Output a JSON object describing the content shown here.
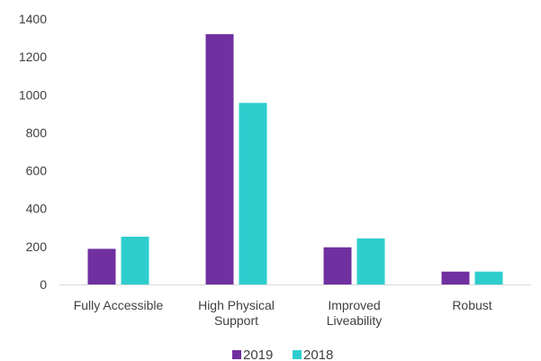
{
  "chart_data": {
    "type": "bar",
    "categories": [
      [
        "Fully Accessible"
      ],
      [
        "High Physical",
        "Support"
      ],
      [
        "Improved",
        "Liveability"
      ],
      [
        "Robust"
      ]
    ],
    "series": [
      {
        "name": "2019",
        "color": "#7030A0",
        "values": [
          188,
          1320,
          196,
          68
        ]
      },
      {
        "name": "2018",
        "color": "#2ECDCD",
        "values": [
          252,
          957,
          243,
          68
        ]
      }
    ],
    "ylim": [
      0,
      1400
    ],
    "yticks": [
      0,
      200,
      400,
      600,
      800,
      1000,
      1200,
      1400
    ],
    "grid": false,
    "legend_position": "bottom"
  }
}
